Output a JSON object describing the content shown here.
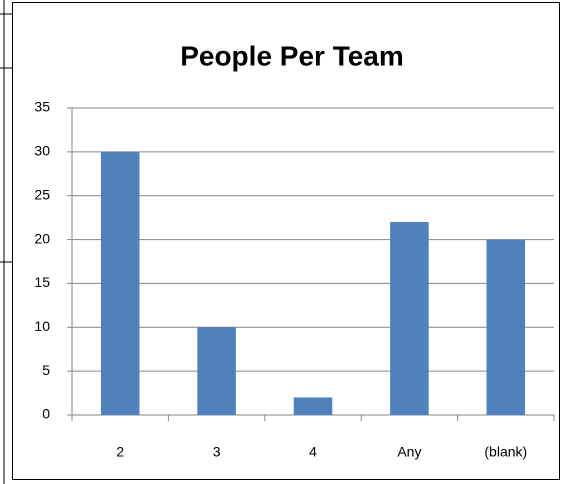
{
  "chart_data": {
    "type": "bar",
    "title": "People Per Team",
    "categories": [
      "2",
      "3",
      "4",
      "Any",
      "(blank)"
    ],
    "values": [
      30,
      10,
      2,
      22,
      20
    ],
    "color": "#4f81bd",
    "ylim": [
      0,
      35
    ],
    "yticks": [
      0,
      5,
      10,
      15,
      20,
      25,
      30,
      35
    ],
    "grid": true
  }
}
